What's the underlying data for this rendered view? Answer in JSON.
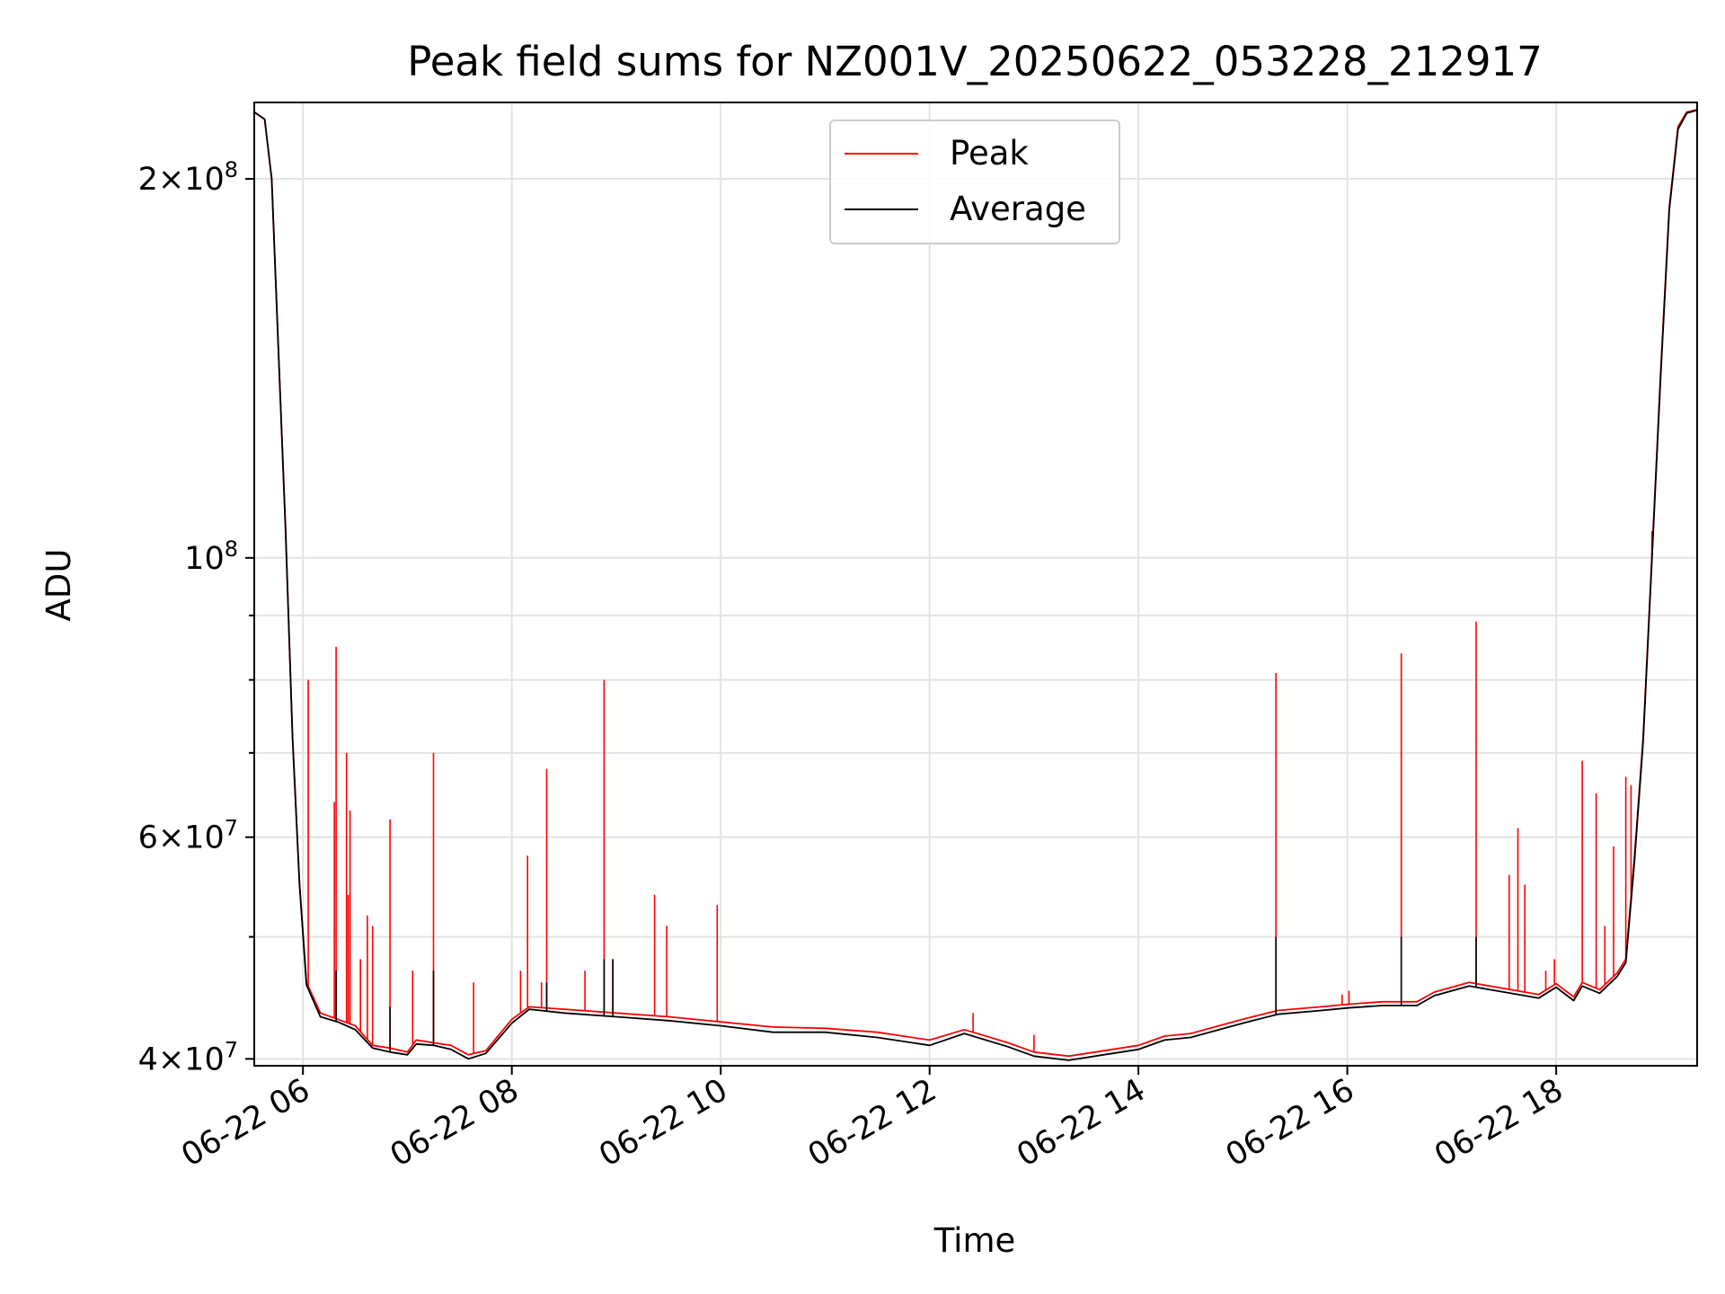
{
  "chart_data": {
    "type": "line",
    "title": "Peak field sums for NZ001V_20250622_053228_212917",
    "xlabel": "Time",
    "ylabel": "ADU",
    "x_range": [
      "2025-06-22T05:32",
      "2025-06-22T19:21"
    ],
    "ylim": [
      39500000,
      230000000
    ],
    "yscale": "log",
    "grid": true,
    "legend_position": "upper center",
    "x_ticks": [
      "2025-06-22T06:00",
      "2025-06-22T08:00",
      "2025-06-22T10:00",
      "2025-06-22T12:00",
      "2025-06-22T14:00",
      "2025-06-22T16:00",
      "2025-06-22T18:00"
    ],
    "x_tick_labels": [
      "06-22 06",
      "06-22 08",
      "06-22 10",
      "06-22 12",
      "06-22 14",
      "06-22 16",
      "06-22 18"
    ],
    "y_ticks": [
      {
        "value": 40000000,
        "mantissa": "4",
        "exp": "7"
      },
      {
        "value": 60000000,
        "mantissa": "6",
        "exp": "7"
      },
      {
        "value": 100000000,
        "mantissa": "",
        "exp": "8"
      },
      {
        "value": 200000000,
        "mantissa": "2",
        "exp": "8"
      }
    ],
    "y_minor_ticks": [
      50000000,
      70000000,
      80000000,
      90000000
    ],
    "series": [
      {
        "name": "Peak",
        "color": "#ff0000",
        "points": [
          [
            "2025-06-22T05:32",
            226000000
          ],
          [
            "2025-06-22T05:38",
            223000000
          ],
          [
            "2025-06-22T05:42",
            200000000
          ],
          [
            "2025-06-22T05:46",
            145000000
          ],
          [
            "2025-06-22T05:50",
            105000000
          ],
          [
            "2025-06-22T05:54",
            72000000
          ],
          [
            "2025-06-22T05:58",
            55000000
          ],
          [
            "2025-06-22T06:02",
            46000000
          ],
          [
            "2025-06-22T06:10",
            43500000
          ],
          [
            "2025-06-22T06:20",
            43000000
          ],
          [
            "2025-06-22T06:30",
            42500000
          ],
          [
            "2025-06-22T06:40",
            41000000
          ],
          [
            "2025-06-22T06:50",
            40800000
          ],
          [
            "2025-06-22T07:00",
            40500000
          ],
          [
            "2025-06-22T07:05",
            41400000
          ],
          [
            "2025-06-22T07:15",
            41200000
          ],
          [
            "2025-06-22T07:25",
            41000000
          ],
          [
            "2025-06-22T07:35",
            40300000
          ],
          [
            "2025-06-22T07:45",
            40600000
          ],
          [
            "2025-06-22T08:00",
            43000000
          ],
          [
            "2025-06-22T08:10",
            44000000
          ],
          [
            "2025-06-22T08:30",
            43800000
          ],
          [
            "2025-06-22T09:00",
            43500000
          ],
          [
            "2025-06-22T09:30",
            43200000
          ],
          [
            "2025-06-22T10:00",
            42800000
          ],
          [
            "2025-06-22T10:30",
            42400000
          ],
          [
            "2025-06-22T11:00",
            42300000
          ],
          [
            "2025-06-22T11:30",
            42000000
          ],
          [
            "2025-06-22T12:00",
            41400000
          ],
          [
            "2025-06-22T12:20",
            42200000
          ],
          [
            "2025-06-22T12:45",
            41200000
          ],
          [
            "2025-06-22T13:00",
            40500000
          ],
          [
            "2025-06-22T13:20",
            40200000
          ],
          [
            "2025-06-22T13:40",
            40600000
          ],
          [
            "2025-06-22T14:00",
            41000000
          ],
          [
            "2025-06-22T14:15",
            41700000
          ],
          [
            "2025-06-22T14:30",
            41900000
          ],
          [
            "2025-06-22T15:00",
            43000000
          ],
          [
            "2025-06-22T15:20",
            43700000
          ],
          [
            "2025-06-22T15:45",
            44000000
          ],
          [
            "2025-06-22T16:00",
            44200000
          ],
          [
            "2025-06-22T16:20",
            44400000
          ],
          [
            "2025-06-22T16:40",
            44400000
          ],
          [
            "2025-06-22T16:50",
            45200000
          ],
          [
            "2025-06-22T17:10",
            46000000
          ],
          [
            "2025-06-22T17:30",
            45500000
          ],
          [
            "2025-06-22T17:50",
            45000000
          ],
          [
            "2025-06-22T18:00",
            45900000
          ],
          [
            "2025-06-22T18:10",
            44800000
          ],
          [
            "2025-06-22T18:15",
            46000000
          ],
          [
            "2025-06-22T18:25",
            45400000
          ],
          [
            "2025-06-22T18:35",
            46800000
          ],
          [
            "2025-06-22T18:40",
            48000000
          ],
          [
            "2025-06-22T18:45",
            58000000
          ],
          [
            "2025-06-22T18:50",
            72000000
          ],
          [
            "2025-06-22T18:55",
            100000000
          ],
          [
            "2025-06-22T19:00",
            140000000
          ],
          [
            "2025-06-22T19:05",
            190000000
          ],
          [
            "2025-06-22T19:10",
            220000000
          ],
          [
            "2025-06-22T19:15",
            226000000
          ],
          [
            "2025-06-22T19:21",
            227000000
          ]
        ]
      },
      {
        "name": "Average",
        "color": "#000000",
        "points": [
          [
            "2025-06-22T05:32",
            226000000
          ],
          [
            "2025-06-22T05:38",
            223000000
          ],
          [
            "2025-06-22T05:42",
            200000000
          ],
          [
            "2025-06-22T05:46",
            145000000
          ],
          [
            "2025-06-22T05:50",
            105000000
          ],
          [
            "2025-06-22T05:54",
            72000000
          ],
          [
            "2025-06-22T05:58",
            55000000
          ],
          [
            "2025-06-22T06:02",
            45800000
          ],
          [
            "2025-06-22T06:10",
            43200000
          ],
          [
            "2025-06-22T06:20",
            42800000
          ],
          [
            "2025-06-22T06:30",
            42200000
          ],
          [
            "2025-06-22T06:40",
            40800000
          ],
          [
            "2025-06-22T06:50",
            40500000
          ],
          [
            "2025-06-22T07:00",
            40300000
          ],
          [
            "2025-06-22T07:05",
            41100000
          ],
          [
            "2025-06-22T07:15",
            41000000
          ],
          [
            "2025-06-22T07:25",
            40700000
          ],
          [
            "2025-06-22T07:35",
            40000000
          ],
          [
            "2025-06-22T07:45",
            40400000
          ],
          [
            "2025-06-22T08:00",
            42700000
          ],
          [
            "2025-06-22T08:10",
            43800000
          ],
          [
            "2025-06-22T08:30",
            43500000
          ],
          [
            "2025-06-22T09:00",
            43200000
          ],
          [
            "2025-06-22T09:30",
            42900000
          ],
          [
            "2025-06-22T10:00",
            42500000
          ],
          [
            "2025-06-22T10:30",
            42000000
          ],
          [
            "2025-06-22T11:00",
            42000000
          ],
          [
            "2025-06-22T11:30",
            41600000
          ],
          [
            "2025-06-22T12:00",
            41000000
          ],
          [
            "2025-06-22T12:20",
            41900000
          ],
          [
            "2025-06-22T12:45",
            40900000
          ],
          [
            "2025-06-22T13:00",
            40200000
          ],
          [
            "2025-06-22T13:20",
            39900000
          ],
          [
            "2025-06-22T13:40",
            40300000
          ],
          [
            "2025-06-22T14:00",
            40700000
          ],
          [
            "2025-06-22T14:15",
            41400000
          ],
          [
            "2025-06-22T14:30",
            41600000
          ],
          [
            "2025-06-22T15:00",
            42700000
          ],
          [
            "2025-06-22T15:20",
            43400000
          ],
          [
            "2025-06-22T15:45",
            43700000
          ],
          [
            "2025-06-22T16:00",
            43900000
          ],
          [
            "2025-06-22T16:20",
            44100000
          ],
          [
            "2025-06-22T16:40",
            44100000
          ],
          [
            "2025-06-22T16:50",
            44900000
          ],
          [
            "2025-06-22T17:10",
            45700000
          ],
          [
            "2025-06-22T17:30",
            45200000
          ],
          [
            "2025-06-22T17:50",
            44700000
          ],
          [
            "2025-06-22T18:00",
            45600000
          ],
          [
            "2025-06-22T18:10",
            44500000
          ],
          [
            "2025-06-22T18:15",
            45700000
          ],
          [
            "2025-06-22T18:25",
            45100000
          ],
          [
            "2025-06-22T18:35",
            46500000
          ],
          [
            "2025-06-22T18:40",
            47700000
          ],
          [
            "2025-06-22T18:45",
            57500000
          ],
          [
            "2025-06-22T18:50",
            71500000
          ],
          [
            "2025-06-22T18:55",
            99500000
          ],
          [
            "2025-06-22T19:00",
            139000000
          ],
          [
            "2025-06-22T19:05",
            189000000
          ],
          [
            "2025-06-22T19:10",
            219000000
          ],
          [
            "2025-06-22T19:15",
            225500000
          ],
          [
            "2025-06-22T19:21",
            226800000
          ]
        ]
      }
    ],
    "peak_spikes": [
      [
        "2025-06-22T06:03",
        80000000
      ],
      [
        "2025-06-22T06:18",
        64000000
      ],
      [
        "2025-06-22T06:19",
        85000000
      ],
      [
        "2025-06-22T06:25",
        70000000
      ],
      [
        "2025-06-22T06:26",
        54000000
      ],
      [
        "2025-06-22T06:27",
        63000000
      ],
      [
        "2025-06-22T06:33",
        48000000
      ],
      [
        "2025-06-22T06:37",
        52000000
      ],
      [
        "2025-06-22T06:40",
        51000000
      ],
      [
        "2025-06-22T06:50",
        62000000
      ],
      [
        "2025-06-22T07:03",
        47000000
      ],
      [
        "2025-06-22T07:15",
        70000000
      ],
      [
        "2025-06-22T07:38",
        46000000
      ],
      [
        "2025-06-22T08:05",
        47000000
      ],
      [
        "2025-06-22T08:09",
        58000000
      ],
      [
        "2025-06-22T08:17",
        46000000
      ],
      [
        "2025-06-22T08:20",
        68000000
      ],
      [
        "2025-06-22T08:42",
        47000000
      ],
      [
        "2025-06-22T08:53",
        80000000
      ],
      [
        "2025-06-22T08:58",
        48000000
      ],
      [
        "2025-06-22T09:22",
        54000000
      ],
      [
        "2025-06-22T09:29",
        51000000
      ],
      [
        "2025-06-22T09:58",
        53000000
      ],
      [
        "2025-06-22T12:25",
        43500000
      ],
      [
        "2025-06-22T13:00",
        41800000
      ],
      [
        "2025-06-22T15:19",
        81000000
      ],
      [
        "2025-06-22T15:57",
        45000000
      ],
      [
        "2025-06-22T16:01",
        45300000
      ],
      [
        "2025-06-22T16:31",
        84000000
      ],
      [
        "2025-06-22T17:14",
        89000000
      ],
      [
        "2025-06-22T17:33",
        56000000
      ],
      [
        "2025-06-22T17:38",
        61000000
      ],
      [
        "2025-06-22T17:42",
        55000000
      ],
      [
        "2025-06-22T17:54",
        47000000
      ],
      [
        "2025-06-22T17:59",
        48000000
      ],
      [
        "2025-06-22T18:15",
        69000000
      ],
      [
        "2025-06-22T18:23",
        65000000
      ],
      [
        "2025-06-22T18:28",
        51000000
      ],
      [
        "2025-06-22T18:33",
        59000000
      ],
      [
        "2025-06-22T18:40",
        67000000
      ],
      [
        "2025-06-22T18:43",
        66000000
      ],
      [
        "2025-06-22T18:55",
        105000000
      ]
    ],
    "average_spikes": [
      [
        "2025-06-22T06:19",
        47000000
      ],
      [
        "2025-06-22T06:50",
        44000000
      ],
      [
        "2025-06-22T07:15",
        47000000
      ],
      [
        "2025-06-22T08:20",
        46000000
      ],
      [
        "2025-06-22T08:53",
        48000000
      ],
      [
        "2025-06-22T08:58",
        48000000
      ],
      [
        "2025-06-22T15:19",
        50000000
      ],
      [
        "2025-06-22T16:31",
        50000000
      ],
      [
        "2025-06-22T17:14",
        50000000
      ]
    ]
  }
}
